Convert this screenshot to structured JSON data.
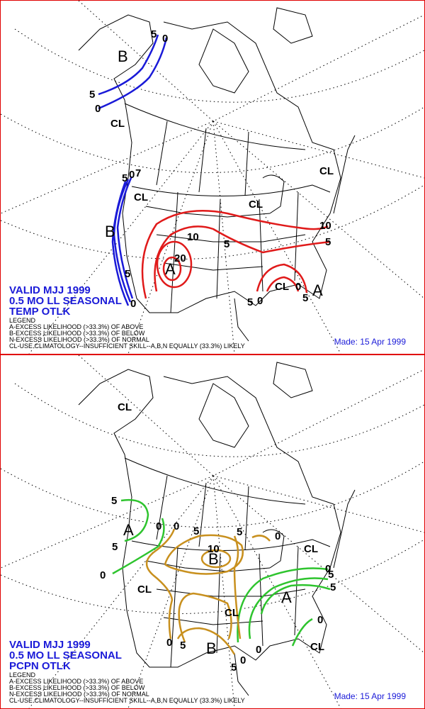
{
  "temp": {
    "valid": "VALID MJJ 1999",
    "lead": "0.5 MO LL SEASONAL",
    "outlook": "TEMP OTLK",
    "made": "Made: 15 Apr 1999",
    "labels": {
      "B_ak": "B",
      "ak5": "5",
      "ak0": "0",
      "ak5b": "5",
      "ak0b": "0",
      "cl_bc": "CL",
      "w5": "5",
      "w0": "0",
      "w7": "7",
      "cl_w": "CL",
      "B_w": "B",
      "w5b": "5",
      "w0b": "0",
      "cl_ne": "CL",
      "cl_c": "CL",
      "n10": "10",
      "n5": "5",
      "n20": "20",
      "A_sw": "A",
      "e10": "10",
      "e5": "5",
      "cl_se": "CL",
      "se0": "0",
      "se5": "5",
      "se0b": "0",
      "se5b": "5",
      "A_se": "A"
    }
  },
  "precip": {
    "valid": "VALID MJJ 1999",
    "lead": "0.5 MO LL SEASONAL",
    "outlook": "PCPN OTLK",
    "made": "Made: 15 Apr 1999",
    "labels": {
      "cl_ak": "CL",
      "pn5": "5",
      "A_pn": "A",
      "pn0": "0",
      "pn5b": "5",
      "pn0b": "0",
      "gb0": "0",
      "gb5": "5",
      "gb10": "10",
      "B_np": "B",
      "gb5b": "5",
      "gb0b": "0",
      "cl_ne": "CL",
      "cl_w": "CL",
      "cl_c": "CL",
      "e0": "0",
      "e5": "5",
      "A_e": "A",
      "e5b": "5",
      "gb0c": "0",
      "gb5c": "5",
      "B_s": "B",
      "gb5d": "5",
      "gb0d": "0",
      "g0": "0",
      "g0b": "0",
      "cl_se": "CL"
    }
  },
  "legend": {
    "title": "LEGEND",
    "a": "A-EXCESS LIKELIHOOD (>33.3%) OF ABOVE",
    "b": "B-EXCESS LIKELIHOOD (>33.3%) OF BELOW",
    "n": "N-EXCESS LIKELIHOOD (>33.3%) OF NORMAL",
    "cl": "CL-USE CLIMATOLOGY--INSUFFICIENT SKILL--A,B,N EQUALLY (33.3%) LIKELY"
  },
  "colors": {
    "above_temp": "#e01a1a",
    "below_temp": "#1a1ad8",
    "above_precip": "#2ec42e",
    "below_precip": "#c8901e",
    "border": "#e00000",
    "title": "#1a1ad8"
  }
}
